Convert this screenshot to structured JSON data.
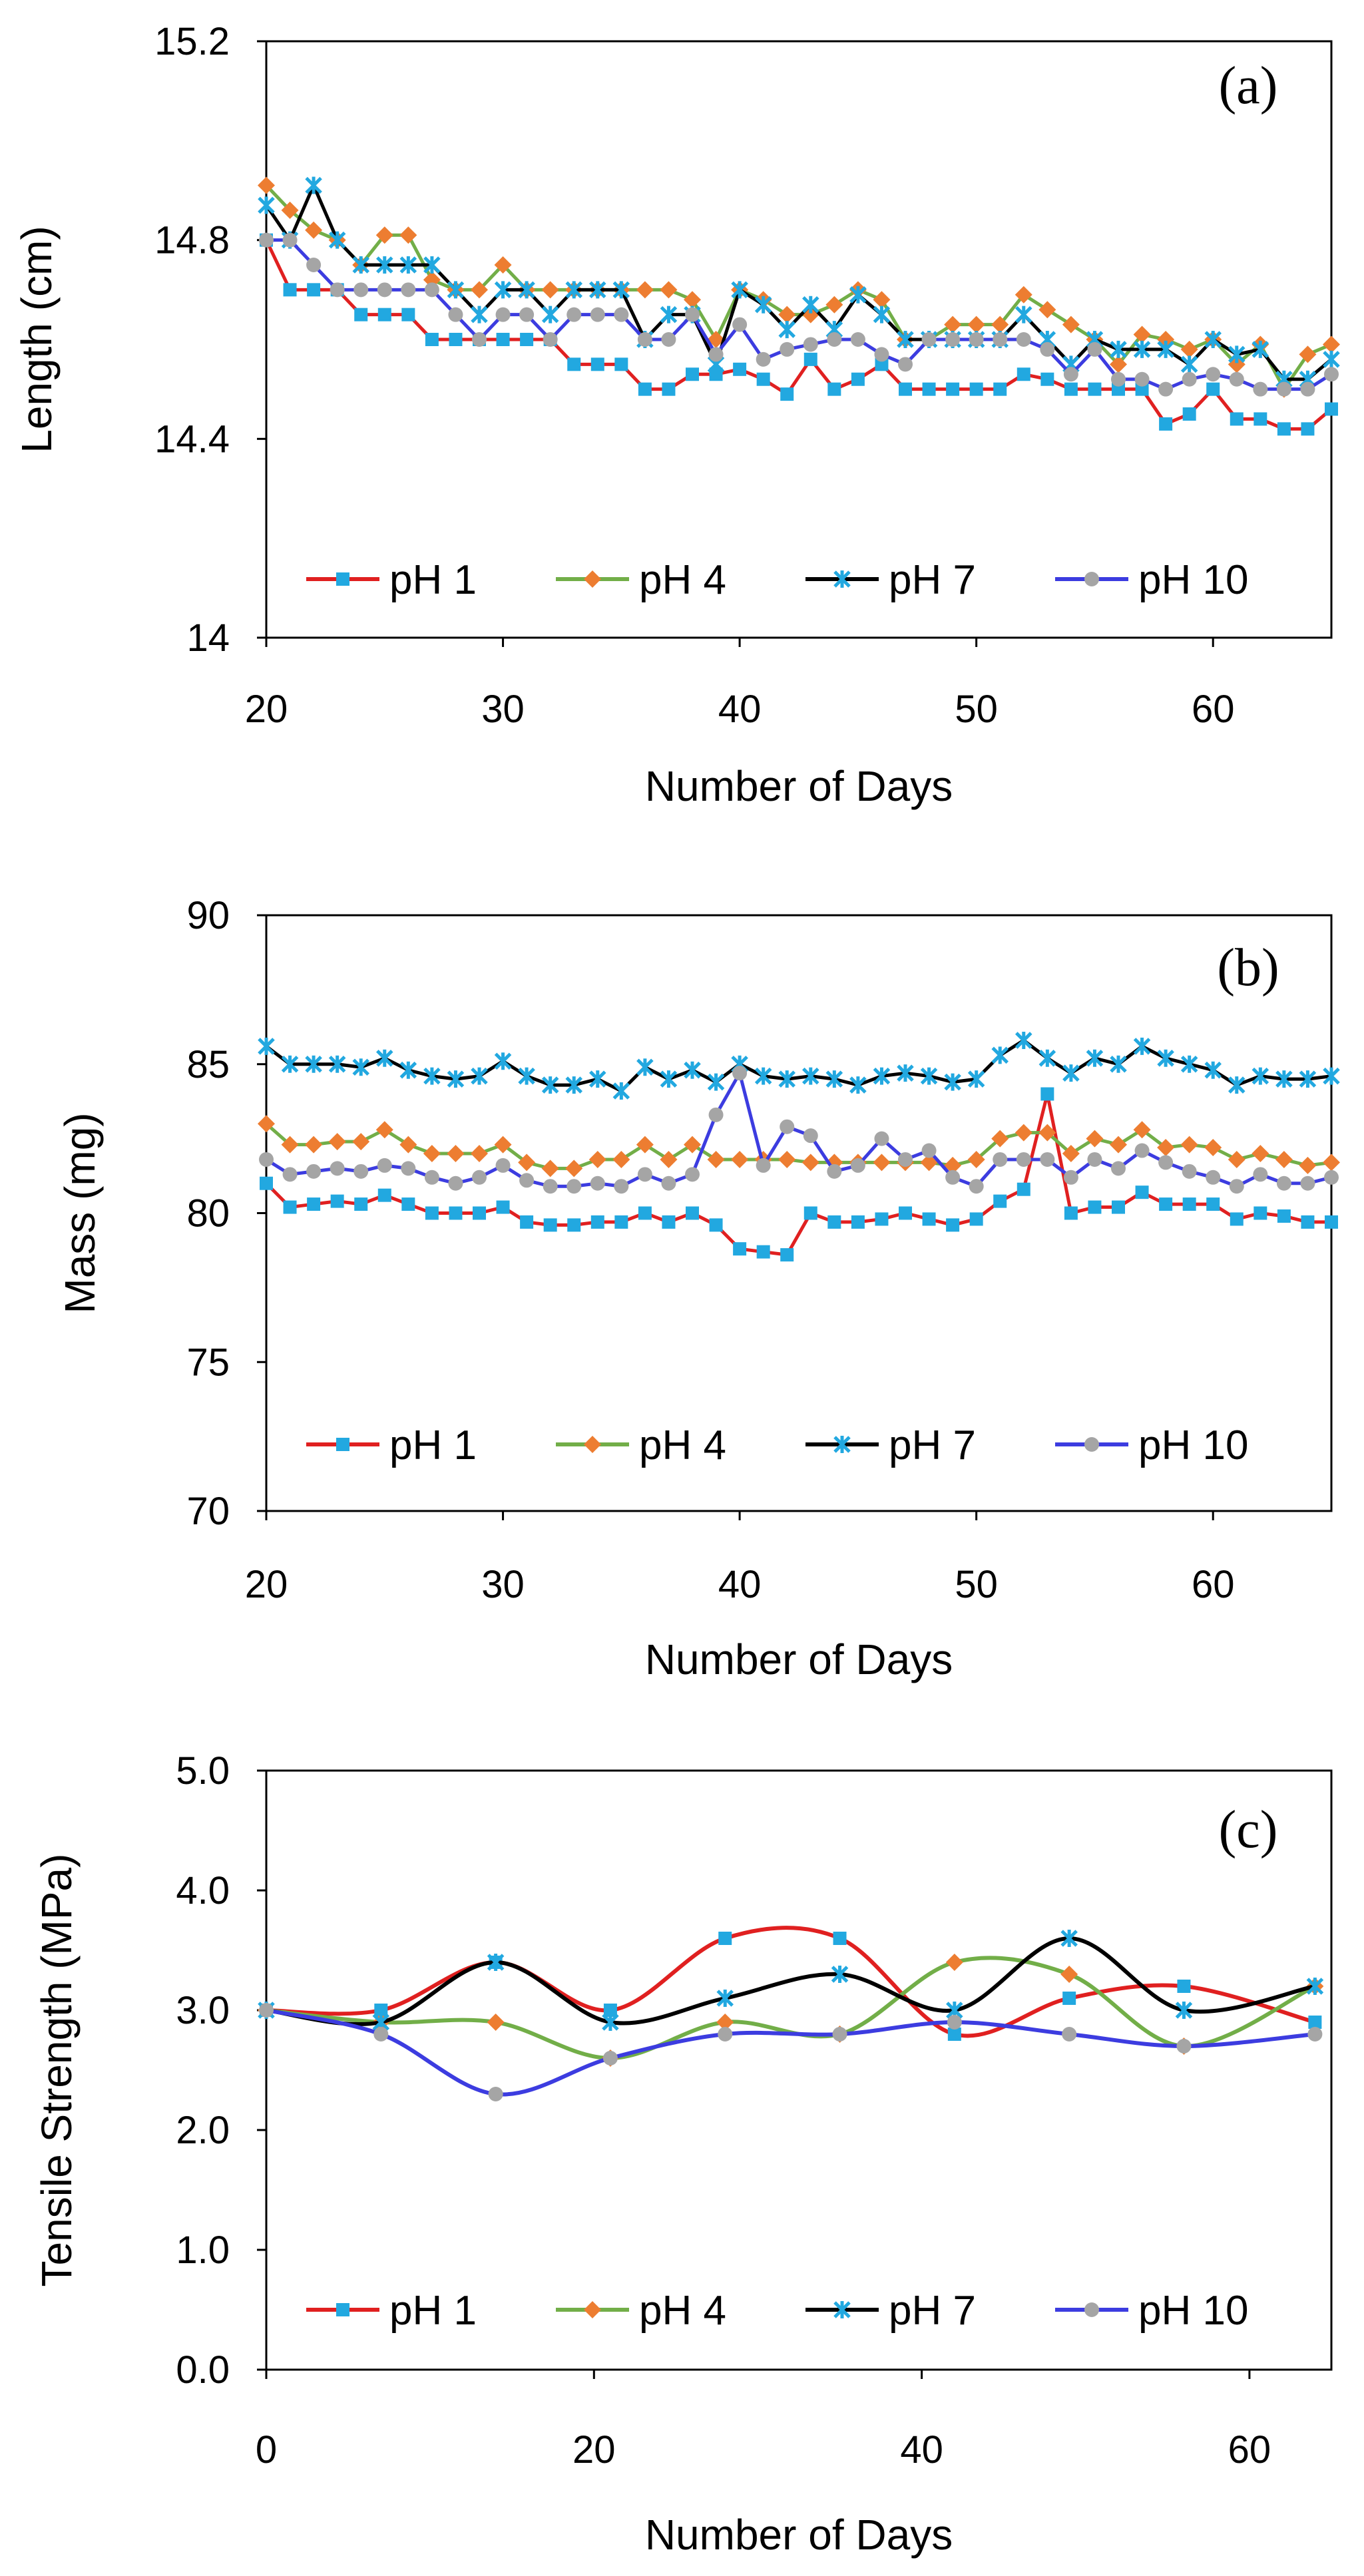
{
  "chart_data": [
    {
      "type": "line",
      "panel_label": "(a)",
      "xlabel": "Number of Days",
      "ylabel": "Length (cm)",
      "xlim": [
        20,
        65
      ],
      "ylim": [
        14,
        15.2
      ],
      "xticks": [
        20,
        30,
        40,
        50,
        60
      ],
      "xtick_labels": [
        "20",
        "30",
        "40",
        "50",
        "60"
      ],
      "yticks": [
        14,
        14.4,
        14.8,
        15.2
      ],
      "ytick_labels": [
        "14",
        "14.4",
        "14.8",
        "15.2"
      ],
      "grid": false,
      "legend_position": "bottom",
      "x": [
        20,
        21,
        22,
        23,
        24,
        25,
        26,
        27,
        28,
        29,
        30,
        31,
        32,
        33,
        34,
        35,
        36,
        37,
        38,
        39,
        40,
        41,
        42,
        43,
        44,
        45,
        46,
        47,
        48,
        49,
        50,
        51,
        52,
        53,
        54,
        55,
        56,
        57,
        58,
        59,
        60,
        61,
        62,
        63,
        64,
        65
      ],
      "series": [
        {
          "name": "pH 1",
          "values": [
            14.8,
            14.7,
            14.7,
            14.7,
            14.65,
            14.65,
            14.65,
            14.6,
            14.6,
            14.6,
            14.6,
            14.6,
            14.6,
            14.55,
            14.55,
            14.55,
            14.5,
            14.5,
            14.53,
            14.53,
            14.54,
            14.52,
            14.49,
            14.56,
            14.5,
            14.52,
            14.55,
            14.5,
            14.5,
            14.5,
            14.5,
            14.5,
            14.53,
            14.52,
            14.5,
            14.5,
            14.5,
            14.5,
            14.43,
            14.45,
            14.5,
            14.44,
            14.44,
            14.42,
            14.42,
            14.46
          ]
        },
        {
          "name": "pH 4",
          "values": [
            14.91,
            14.86,
            14.82,
            14.8,
            14.75,
            14.81,
            14.81,
            14.72,
            14.7,
            14.7,
            14.75,
            14.7,
            14.7,
            14.7,
            14.7,
            14.7,
            14.7,
            14.7,
            14.68,
            14.6,
            14.7,
            14.68,
            14.65,
            14.65,
            14.67,
            14.7,
            14.68,
            14.6,
            14.6,
            14.63,
            14.63,
            14.63,
            14.69,
            14.66,
            14.63,
            14.6,
            14.55,
            14.61,
            14.6,
            14.58,
            14.6,
            14.55,
            14.59,
            14.5,
            14.57,
            14.59
          ]
        },
        {
          "name": "pH 7",
          "values": [
            14.87,
            14.8,
            14.91,
            14.8,
            14.75,
            14.75,
            14.75,
            14.75,
            14.7,
            14.65,
            14.7,
            14.7,
            14.65,
            14.7,
            14.7,
            14.7,
            14.6,
            14.65,
            14.65,
            14.55,
            14.7,
            14.67,
            14.62,
            14.67,
            14.62,
            14.69,
            14.65,
            14.6,
            14.6,
            14.6,
            14.6,
            14.6,
            14.65,
            14.6,
            14.55,
            14.6,
            14.58,
            14.58,
            14.58,
            14.55,
            14.6,
            14.57,
            14.58,
            14.52,
            14.52,
            14.56
          ]
        },
        {
          "name": "pH 10",
          "values": [
            14.8,
            14.8,
            14.75,
            14.7,
            14.7,
            14.7,
            14.7,
            14.7,
            14.65,
            14.6,
            14.65,
            14.65,
            14.6,
            14.65,
            14.65,
            14.65,
            14.6,
            14.6,
            14.65,
            14.57,
            14.63,
            14.56,
            14.58,
            14.59,
            14.6,
            14.6,
            14.57,
            14.55,
            14.6,
            14.6,
            14.6,
            14.6,
            14.6,
            14.58,
            14.53,
            14.58,
            14.52,
            14.52,
            14.5,
            14.52,
            14.53,
            14.52,
            14.5,
            14.5,
            14.5,
            14.53
          ]
        }
      ]
    },
    {
      "type": "line",
      "panel_label": "(b)",
      "xlabel": "Number of Days",
      "ylabel": "Mass (mg)",
      "xlim": [
        20,
        65
      ],
      "ylim": [
        70,
        90
      ],
      "xticks": [
        20,
        30,
        40,
        50,
        60
      ],
      "xtick_labels": [
        "20",
        "30",
        "40",
        "50",
        "60"
      ],
      "yticks": [
        70,
        75,
        80,
        85,
        90
      ],
      "ytick_labels": [
        "70",
        "75",
        "80",
        "85",
        "90"
      ],
      "grid": false,
      "legend_position": "bottom",
      "x": [
        20,
        21,
        22,
        23,
        24,
        25,
        26,
        27,
        28,
        29,
        30,
        31,
        32,
        33,
        34,
        35,
        36,
        37,
        38,
        39,
        40,
        41,
        42,
        43,
        44,
        45,
        46,
        47,
        48,
        49,
        50,
        51,
        52,
        53,
        54,
        55,
        56,
        57,
        58,
        59,
        60,
        61,
        62,
        63,
        64,
        65
      ],
      "series": [
        {
          "name": "pH 1",
          "values": [
            81.0,
            80.2,
            80.3,
            80.4,
            80.3,
            80.6,
            80.3,
            80.0,
            80.0,
            80.0,
            80.2,
            79.7,
            79.6,
            79.6,
            79.7,
            79.7,
            80.0,
            79.7,
            80.0,
            79.6,
            78.8,
            78.7,
            78.6,
            80.0,
            79.7,
            79.7,
            79.8,
            80.0,
            79.8,
            79.6,
            79.8,
            80.4,
            80.8,
            84.0,
            80.0,
            80.2,
            80.2,
            80.7,
            80.3,
            80.3,
            80.3,
            79.8,
            80.0,
            79.9,
            79.7,
            79.7
          ]
        },
        {
          "name": "pH 4",
          "values": [
            83.0,
            82.3,
            82.3,
            82.4,
            82.4,
            82.8,
            82.3,
            82.0,
            82.0,
            82.0,
            82.3,
            81.7,
            81.5,
            81.5,
            81.8,
            81.8,
            82.3,
            81.8,
            82.3,
            81.8,
            81.8,
            81.8,
            81.8,
            81.7,
            81.7,
            81.7,
            81.7,
            81.7,
            81.7,
            81.6,
            81.8,
            82.5,
            82.7,
            82.7,
            82.0,
            82.5,
            82.3,
            82.8,
            82.2,
            82.3,
            82.2,
            81.8,
            82.0,
            81.8,
            81.6,
            81.7
          ]
        },
        {
          "name": "pH 7",
          "values": [
            85.6,
            85.0,
            85.0,
            85.0,
            84.9,
            85.2,
            84.8,
            84.6,
            84.5,
            84.6,
            85.1,
            84.6,
            84.3,
            84.3,
            84.5,
            84.1,
            84.9,
            84.5,
            84.8,
            84.4,
            85.0,
            84.6,
            84.5,
            84.6,
            84.5,
            84.3,
            84.6,
            84.7,
            84.6,
            84.4,
            84.5,
            85.3,
            85.8,
            85.2,
            84.7,
            85.2,
            85.0,
            85.6,
            85.2,
            85.0,
            84.8,
            84.3,
            84.6,
            84.5,
            84.5,
            84.6
          ]
        },
        {
          "name": "pH 10",
          "values": [
            81.8,
            81.3,
            81.4,
            81.5,
            81.4,
            81.6,
            81.5,
            81.2,
            81.0,
            81.2,
            81.6,
            81.1,
            80.9,
            80.9,
            81.0,
            80.9,
            81.3,
            81.0,
            81.3,
            83.3,
            84.7,
            81.6,
            82.9,
            82.6,
            81.4,
            81.6,
            82.5,
            81.8,
            82.1,
            81.2,
            80.9,
            81.8,
            81.8,
            81.8,
            81.2,
            81.8,
            81.5,
            82.1,
            81.7,
            81.4,
            81.2,
            80.9,
            81.3,
            81.0,
            81.0,
            81.2
          ]
        }
      ]
    },
    {
      "type": "line",
      "panel_label": "(c)",
      "xlabel": "Number of Days",
      "ylabel": "Tensile Strength (MPa)",
      "xlim": [
        0,
        65
      ],
      "ylim": [
        0,
        5
      ],
      "xticks": [
        0,
        20,
        40,
        60
      ],
      "xtick_labels": [
        "0",
        "20",
        "40",
        "60"
      ],
      "yticks": [
        0,
        1,
        2,
        3,
        4,
        5
      ],
      "ytick_labels": [
        "0.0",
        "1.0",
        "2.0",
        "3.0",
        "4.0",
        "5.0"
      ],
      "grid": false,
      "smooth": true,
      "legend_position": "bottom",
      "x": [
        0,
        7,
        14,
        21,
        28,
        35,
        42,
        49,
        56,
        64
      ],
      "series": [
        {
          "name": "pH 1",
          "values": [
            3.0,
            3.0,
            3.4,
            3.0,
            3.6,
            3.6,
            2.8,
            3.1,
            3.2,
            2.9
          ]
        },
        {
          "name": "pH 4",
          "values": [
            3.0,
            2.9,
            2.9,
            2.6,
            2.9,
            2.8,
            3.4,
            3.3,
            2.7,
            3.2
          ]
        },
        {
          "name": "pH 7",
          "values": [
            3.0,
            2.9,
            3.4,
            2.9,
            3.1,
            3.3,
            3.0,
            3.6,
            3.0,
            3.2
          ]
        },
        {
          "name": "pH 10",
          "values": [
            3.0,
            2.8,
            2.3,
            2.6,
            2.8,
            2.8,
            2.9,
            2.8,
            2.7,
            2.8
          ]
        }
      ]
    }
  ],
  "series_styles": [
    {
      "name": "pH 1",
      "line_color": "#e02020",
      "marker_color": "#22a8e0",
      "marker": "square"
    },
    {
      "name": "pH 4",
      "line_color": "#72ae48",
      "marker_color": "#ed7d31",
      "marker": "diamond"
    },
    {
      "name": "pH 7",
      "line_color": "#000000",
      "marker_color": "#22a8e0",
      "marker": "star"
    },
    {
      "name": "pH 10",
      "line_color": "#3c3ce0",
      "marker_color": "#a5a5a5",
      "marker": "circle"
    }
  ]
}
